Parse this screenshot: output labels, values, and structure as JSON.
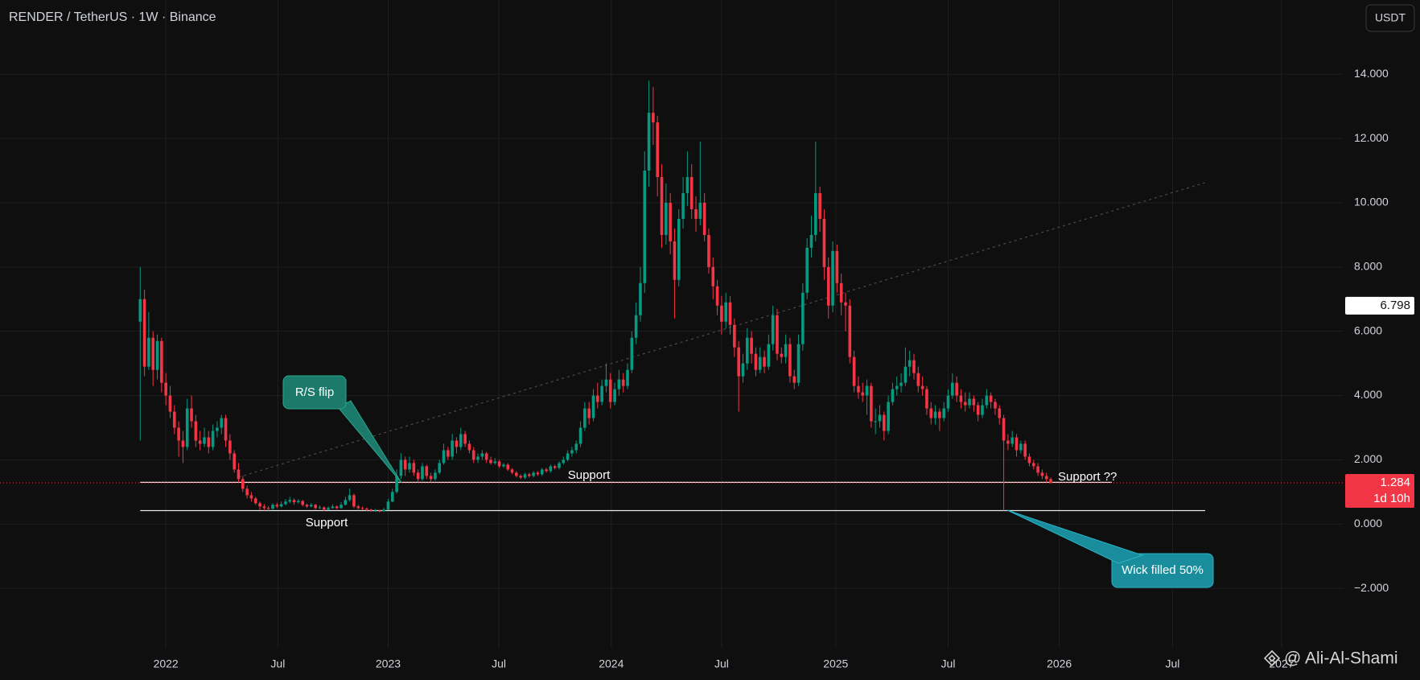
{
  "header": {
    "symbol": "RENDER / TetherUS · 1W · Binance",
    "currency_button": "USDT",
    "watermark": "@ Ali-Al-Shami"
  },
  "chart_data": {
    "type": "candlestick",
    "up_color": "#089981",
    "down_color": "#f23645",
    "xlim": [
      -32.8,
      281.5
    ],
    "xticks": [
      {
        "value": 6,
        "label": "2022"
      },
      {
        "value": 32.2,
        "label": "Jul"
      },
      {
        "value": 58,
        "label": "2023"
      },
      {
        "value": 83.9,
        "label": "Jul"
      },
      {
        "value": 110.2,
        "label": "2024"
      },
      {
        "value": 136,
        "label": "Jul"
      },
      {
        "value": 162.7,
        "label": "2025"
      },
      {
        "value": 189,
        "label": "Jul"
      },
      {
        "value": 215,
        "label": "2026"
      },
      {
        "value": 241.5,
        "label": "Jul"
      },
      {
        "value": 267,
        "label": "2027"
      }
    ],
    "ylim": [
      -3.85,
      16.31
    ],
    "yticks": [
      {
        "value": 14,
        "label": "14.000"
      },
      {
        "value": 12,
        "label": "12.000"
      },
      {
        "value": 10,
        "label": "10.000"
      },
      {
        "value": 8,
        "label": "8.000"
      },
      {
        "value": 6,
        "label": "6.000"
      },
      {
        "value": 4,
        "label": "4.000"
      },
      {
        "value": 2,
        "label": "2.000"
      },
      {
        "value": 0,
        "label": "0.000"
      },
      {
        "value": -2,
        "label": "−2.000"
      }
    ],
    "grid": true,
    "levels": [
      1.3,
      0.42
    ],
    "trendline": {
      "x": [
        23,
        249
      ],
      "y": [
        1.46,
        10.62
      ]
    },
    "marked_price": 6.798,
    "last_price": 1.284,
    "countdown": "1d 10h",
    "annotations": [
      "R/S flip",
      "Support",
      "Support",
      "Support ??",
      "Wick filled 50%"
    ],
    "ohlc": [
      [
        6.3,
        8.0,
        2.6,
        7.0
      ],
      [
        7.0,
        7.3,
        4.6,
        4.9
      ],
      [
        4.9,
        6.6,
        4.8,
        5.8
      ],
      [
        5.8,
        6.0,
        4.3,
        4.8
      ],
      [
        4.8,
        5.9,
        4.5,
        5.7
      ],
      [
        5.7,
        5.8,
        4.1,
        4.4
      ],
      [
        4.4,
        4.7,
        3.7,
        4.0
      ],
      [
        4.0,
        4.3,
        3.3,
        3.5
      ],
      [
        3.5,
        3.7,
        2.8,
        3.0
      ],
      [
        3.0,
        3.2,
        2.1,
        2.6
      ],
      [
        2.6,
        2.9,
        1.9,
        2.4
      ],
      [
        2.4,
        3.9,
        2.3,
        3.6
      ],
      [
        3.6,
        4.0,
        3.0,
        3.2
      ],
      [
        3.2,
        3.4,
        2.4,
        2.6
      ],
      [
        2.6,
        2.9,
        2.3,
        2.5
      ],
      [
        2.5,
        3.0,
        2.4,
        2.7
      ],
      [
        2.7,
        2.9,
        2.2,
        2.4
      ],
      [
        2.4,
        3.1,
        2.3,
        2.9
      ],
      [
        2.9,
        3.2,
        2.7,
        3.0
      ],
      [
        3.0,
        3.4,
        2.8,
        3.3
      ],
      [
        3.3,
        3.4,
        2.4,
        2.6
      ],
      [
        2.6,
        2.8,
        2.0,
        2.2
      ],
      [
        2.2,
        2.3,
        1.6,
        1.7
      ],
      [
        1.7,
        1.9,
        1.3,
        1.4
      ],
      [
        1.4,
        1.5,
        1.0,
        1.1
      ],
      [
        1.1,
        1.2,
        0.8,
        0.9
      ],
      [
        0.9,
        1.0,
        0.7,
        0.8
      ],
      [
        0.8,
        0.85,
        0.6,
        0.65
      ],
      [
        0.65,
        0.7,
        0.45,
        0.55
      ],
      [
        0.55,
        0.62,
        0.42,
        0.5
      ],
      [
        0.5,
        0.56,
        0.42,
        0.48
      ],
      [
        0.48,
        0.65,
        0.45,
        0.6
      ],
      [
        0.6,
        0.66,
        0.5,
        0.55
      ],
      [
        0.55,
        0.7,
        0.52,
        0.62
      ],
      [
        0.62,
        0.78,
        0.58,
        0.7
      ],
      [
        0.7,
        0.85,
        0.65,
        0.75
      ],
      [
        0.75,
        0.8,
        0.6,
        0.68
      ],
      [
        0.68,
        0.78,
        0.64,
        0.72
      ],
      [
        0.72,
        0.75,
        0.55,
        0.6
      ],
      [
        0.6,
        0.64,
        0.5,
        0.55
      ],
      [
        0.55,
        0.66,
        0.52,
        0.6
      ],
      [
        0.6,
        0.63,
        0.46,
        0.5
      ],
      [
        0.5,
        0.58,
        0.47,
        0.52
      ],
      [
        0.52,
        0.55,
        0.41,
        0.45
      ],
      [
        0.45,
        0.56,
        0.43,
        0.5
      ],
      [
        0.5,
        0.62,
        0.48,
        0.55
      ],
      [
        0.55,
        0.58,
        0.46,
        0.5
      ],
      [
        0.5,
        0.68,
        0.48,
        0.6
      ],
      [
        0.6,
        0.85,
        0.58,
        0.75
      ],
      [
        0.75,
        1.1,
        0.7,
        0.9
      ],
      [
        0.9,
        0.95,
        0.5,
        0.55
      ],
      [
        0.55,
        0.6,
        0.46,
        0.5
      ],
      [
        0.5,
        0.55,
        0.44,
        0.48
      ],
      [
        0.48,
        0.52,
        0.4,
        0.45
      ],
      [
        0.45,
        0.48,
        0.38,
        0.42
      ],
      [
        0.42,
        0.47,
        0.38,
        0.42
      ],
      [
        0.42,
        0.45,
        0.36,
        0.4
      ],
      [
        0.4,
        0.5,
        0.38,
        0.45
      ],
      [
        0.45,
        0.78,
        0.43,
        0.7
      ],
      [
        0.7,
        1.1,
        0.68,
        1.0
      ],
      [
        1.0,
        1.7,
        0.95,
        1.5
      ],
      [
        1.5,
        2.2,
        1.4,
        2.0
      ],
      [
        2.0,
        2.1,
        1.5,
        1.7
      ],
      [
        1.7,
        2.1,
        1.6,
        1.9
      ],
      [
        1.9,
        2.0,
        1.5,
        1.6
      ],
      [
        1.6,
        1.7,
        1.3,
        1.4
      ],
      [
        1.4,
        1.9,
        1.35,
        1.8
      ],
      [
        1.8,
        1.85,
        1.4,
        1.5
      ],
      [
        1.5,
        1.6,
        1.3,
        1.4
      ],
      [
        1.4,
        1.7,
        1.35,
        1.6
      ],
      [
        1.6,
        2.0,
        1.55,
        1.9
      ],
      [
        1.9,
        2.5,
        1.85,
        2.3
      ],
      [
        2.3,
        2.4,
        2.0,
        2.1
      ],
      [
        2.1,
        2.8,
        2.0,
        2.6
      ],
      [
        2.6,
        2.7,
        2.2,
        2.4
      ],
      [
        2.4,
        3.0,
        2.3,
        2.8
      ],
      [
        2.8,
        2.9,
        2.4,
        2.5
      ],
      [
        2.5,
        2.6,
        2.2,
        2.3
      ],
      [
        2.3,
        2.4,
        1.9,
        2.0
      ],
      [
        2.0,
        2.2,
        1.9,
        2.1
      ],
      [
        2.1,
        2.3,
        2.0,
        2.2
      ],
      [
        2.2,
        2.25,
        1.9,
        2.0
      ],
      [
        2.0,
        2.1,
        1.85,
        1.9
      ],
      [
        1.9,
        2.05,
        1.85,
        1.95
      ],
      [
        1.95,
        2.0,
        1.75,
        1.8
      ],
      [
        1.8,
        1.9,
        1.75,
        1.85
      ],
      [
        1.85,
        1.9,
        1.65,
        1.7
      ],
      [
        1.7,
        1.75,
        1.55,
        1.6
      ],
      [
        1.6,
        1.65,
        1.45,
        1.5
      ],
      [
        1.5,
        1.55,
        1.4,
        1.45
      ],
      [
        1.45,
        1.6,
        1.4,
        1.55
      ],
      [
        1.55,
        1.6,
        1.45,
        1.5
      ],
      [
        1.5,
        1.65,
        1.45,
        1.6
      ],
      [
        1.6,
        1.65,
        1.5,
        1.55
      ],
      [
        1.55,
        1.75,
        1.5,
        1.7
      ],
      [
        1.7,
        1.75,
        1.6,
        1.65
      ],
      [
        1.65,
        1.85,
        1.6,
        1.8
      ],
      [
        1.8,
        1.85,
        1.7,
        1.75
      ],
      [
        1.75,
        1.95,
        1.7,
        1.9
      ],
      [
        1.9,
        2.1,
        1.85,
        2.0
      ],
      [
        2.0,
        2.3,
        1.95,
        2.2
      ],
      [
        2.2,
        2.4,
        2.1,
        2.3
      ],
      [
        2.3,
        2.6,
        2.2,
        2.5
      ],
      [
        2.5,
        3.2,
        2.4,
        3.0
      ],
      [
        3.0,
        3.8,
        2.9,
        3.6
      ],
      [
        3.6,
        3.8,
        3.1,
        3.3
      ],
      [
        3.3,
        4.2,
        3.2,
        4.0
      ],
      [
        4.0,
        4.4,
        3.6,
        3.8
      ],
      [
        3.8,
        4.5,
        3.7,
        4.3
      ],
      [
        4.3,
        5.0,
        4.1,
        4.5
      ],
      [
        4.5,
        4.7,
        3.6,
        3.8
      ],
      [
        3.8,
        4.4,
        3.7,
        4.2
      ],
      [
        4.2,
        4.8,
        4.0,
        4.5
      ],
      [
        4.5,
        4.7,
        4.1,
        4.3
      ],
      [
        4.3,
        5.0,
        4.2,
        4.8
      ],
      [
        4.8,
        6.0,
        4.7,
        5.8
      ],
      [
        5.8,
        6.9,
        5.6,
        6.5
      ],
      [
        6.5,
        8.0,
        6.3,
        7.5
      ],
      [
        7.5,
        11.6,
        7.2,
        11.0
      ],
      [
        11.0,
        13.8,
        10.5,
        12.8
      ],
      [
        12.8,
        13.6,
        11.8,
        12.5
      ],
      [
        12.5,
        12.7,
        10.2,
        10.8
      ],
      [
        10.8,
        11.2,
        8.6,
        9.0
      ],
      [
        9.0,
        10.6,
        8.7,
        10.0
      ],
      [
        10.0,
        10.3,
        8.4,
        8.8
      ],
      [
        8.8,
        9.2,
        6.4,
        7.6
      ],
      [
        7.6,
        9.8,
        7.4,
        9.5
      ],
      [
        9.5,
        10.8,
        9.2,
        10.3
      ],
      [
        10.3,
        11.6,
        9.9,
        10.8
      ],
      [
        10.8,
        11.2,
        9.5,
        9.8
      ],
      [
        9.8,
        10.2,
        9.1,
        9.5
      ],
      [
        9.5,
        11.9,
        9.3,
        10.0
      ],
      [
        10.0,
        10.3,
        8.8,
        9.0
      ],
      [
        9.0,
        9.2,
        7.8,
        8.0
      ],
      [
        8.0,
        8.3,
        7.0,
        7.4
      ],
      [
        7.4,
        7.6,
        6.5,
        6.8
      ],
      [
        6.8,
        7.1,
        5.9,
        6.3
      ],
      [
        6.3,
        7.2,
        6.1,
        6.9
      ],
      [
        6.9,
        7.1,
        5.9,
        6.2
      ],
      [
        6.2,
        6.4,
        5.2,
        5.5
      ],
      [
        5.5,
        5.7,
        3.5,
        4.6
      ],
      [
        4.6,
        5.3,
        4.4,
        5.0
      ],
      [
        5.0,
        6.1,
        4.8,
        5.8
      ],
      [
        5.8,
        6.0,
        5.0,
        5.3
      ],
      [
        5.3,
        5.5,
        4.6,
        4.8
      ],
      [
        4.8,
        5.5,
        4.7,
        5.2
      ],
      [
        5.2,
        5.4,
        4.7,
        4.9
      ],
      [
        4.9,
        5.9,
        4.8,
        5.6
      ],
      [
        5.6,
        6.8,
        5.4,
        6.5
      ],
      [
        6.5,
        6.7,
        5.1,
        5.3
      ],
      [
        5.3,
        5.5,
        5.0,
        5.2
      ],
      [
        5.2,
        5.9,
        5.0,
        5.6
      ],
      [
        5.6,
        5.8,
        4.4,
        4.6
      ],
      [
        4.6,
        4.8,
        4.2,
        4.4
      ],
      [
        4.4,
        5.9,
        4.3,
        5.6
      ],
      [
        5.6,
        7.5,
        5.4,
        7.2
      ],
      [
        7.2,
        8.9,
        7.0,
        8.6
      ],
      [
        8.6,
        9.6,
        8.3,
        9.0
      ],
      [
        9.0,
        11.9,
        8.8,
        10.3
      ],
      [
        10.3,
        10.5,
        9.1,
        9.5
      ],
      [
        9.5,
        9.8,
        7.6,
        8.0
      ],
      [
        8.0,
        8.3,
        6.4,
        6.8
      ],
      [
        6.8,
        8.8,
        6.6,
        8.5
      ],
      [
        8.5,
        8.7,
        7.2,
        7.5
      ],
      [
        7.5,
        7.8,
        6.5,
        6.9
      ],
      [
        6.9,
        7.2,
        6.0,
        6.8
      ],
      [
        6.8,
        7.0,
        5.0,
        5.2
      ],
      [
        5.2,
        5.4,
        4.1,
        4.3
      ],
      [
        4.3,
        4.6,
        3.9,
        4.1
      ],
      [
        4.1,
        4.4,
        3.8,
        4.0
      ],
      [
        4.0,
        4.5,
        3.4,
        4.3
      ],
      [
        4.3,
        4.4,
        3.0,
        3.2
      ],
      [
        3.2,
        3.6,
        2.8,
        3.2
      ],
      [
        3.2,
        3.7,
        3.0,
        3.4
      ],
      [
        3.4,
        3.5,
        2.6,
        2.9
      ],
      [
        2.9,
        4.0,
        2.8,
        3.8
      ],
      [
        3.8,
        4.4,
        3.7,
        4.2
      ],
      [
        4.2,
        4.6,
        4.0,
        4.3
      ],
      [
        4.3,
        4.7,
        4.1,
        4.4
      ],
      [
        4.4,
        5.5,
        4.3,
        4.9
      ],
      [
        4.9,
        5.4,
        4.6,
        5.1
      ],
      [
        5.1,
        5.3,
        4.5,
        4.7
      ],
      [
        4.7,
        4.9,
        4.1,
        4.3
      ],
      [
        4.3,
        4.6,
        4.0,
        4.2
      ],
      [
        4.2,
        4.3,
        3.4,
        3.6
      ],
      [
        3.6,
        3.8,
        3.1,
        3.3
      ],
      [
        3.3,
        3.7,
        3.1,
        3.5
      ],
      [
        3.5,
        3.6,
        2.9,
        3.3
      ],
      [
        3.3,
        3.8,
        3.2,
        3.6
      ],
      [
        3.6,
        4.2,
        3.5,
        4.0
      ],
      [
        4.0,
        4.7,
        3.9,
        4.4
      ],
      [
        4.4,
        4.6,
        3.8,
        4.0
      ],
      [
        4.0,
        4.2,
        3.6,
        3.8
      ],
      [
        3.8,
        4.1,
        3.5,
        3.7
      ],
      [
        3.7,
        4.1,
        3.6,
        3.9
      ],
      [
        3.9,
        4.0,
        3.5,
        3.7
      ],
      [
        3.7,
        3.8,
        3.2,
        3.4
      ],
      [
        3.4,
        3.9,
        3.3,
        3.7
      ],
      [
        3.7,
        4.2,
        3.6,
        4.0
      ],
      [
        4.0,
        4.1,
        3.6,
        3.8
      ],
      [
        3.8,
        3.9,
        3.4,
        3.6
      ],
      [
        3.6,
        3.7,
        3.1,
        3.3
      ],
      [
        3.3,
        3.4,
        0.42,
        2.6
      ],
      [
        2.6,
        2.8,
        2.3,
        2.5
      ],
      [
        2.5,
        2.9,
        2.4,
        2.7
      ],
      [
        2.7,
        2.8,
        2.1,
        2.3
      ],
      [
        2.3,
        2.6,
        2.2,
        2.5
      ],
      [
        2.5,
        2.6,
        2.0,
        2.1
      ],
      [
        2.1,
        2.2,
        1.8,
        1.9
      ],
      [
        1.9,
        2.0,
        1.7,
        1.8
      ],
      [
        1.8,
        1.9,
        1.5,
        1.6
      ],
      [
        1.6,
        1.7,
        1.4,
        1.5
      ],
      [
        1.5,
        1.6,
        1.3,
        1.4
      ],
      [
        1.4,
        1.45,
        1.25,
        1.284
      ]
    ]
  }
}
